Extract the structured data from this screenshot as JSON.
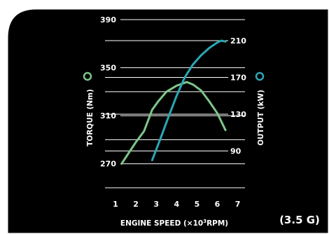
{
  "chart_data": {
    "type": "line",
    "title": "",
    "xlabel_parts": [
      "ENGINE SPEED (×10",
      "3",
      "RPM)"
    ],
    "ylabel_left": "TORQUE (Nm)",
    "ylabel_right": "OUTPUT (kW)",
    "annotation": "(3.5 G)",
    "x_ticks": [
      1,
      2,
      3,
      4,
      5,
      6,
      7
    ],
    "y_left_ticks": [
      390,
      350,
      310,
      270
    ],
    "y_right_ticks": [
      210,
      170,
      130,
      90
    ],
    "xlim": [
      1,
      7
    ],
    "ylim_left": [
      250,
      390
    ],
    "ylim_right": [
      50,
      210
    ],
    "grid": true,
    "series": [
      {
        "axis": "left",
        "color": "#7fc68a",
        "x": [
          1.3,
          2.0,
          2.4,
          2.8,
          3.1,
          3.5,
          4.0,
          4.5,
          4.8,
          5.2,
          5.6,
          6.0,
          6.4
        ],
        "y": [
          270,
          288,
          297,
          315,
          322,
          330,
          335,
          338,
          336,
          331,
          322,
          312,
          298
        ]
      },
      {
        "axis": "right",
        "color": "#2ba7b4",
        "x": [
          2.8,
          3.2,
          3.6,
          4.0,
          4.4,
          4.8,
          5.2,
          5.6,
          6.0,
          6.2,
          6.4
        ],
        "y": [
          80,
          103,
          127,
          150,
          170,
          184,
          194,
          202,
          208,
          210,
          209
        ]
      }
    ],
    "legend_markers": {
      "left_color": "#7fc68a",
      "right_color": "#2ba7b4"
    }
  }
}
